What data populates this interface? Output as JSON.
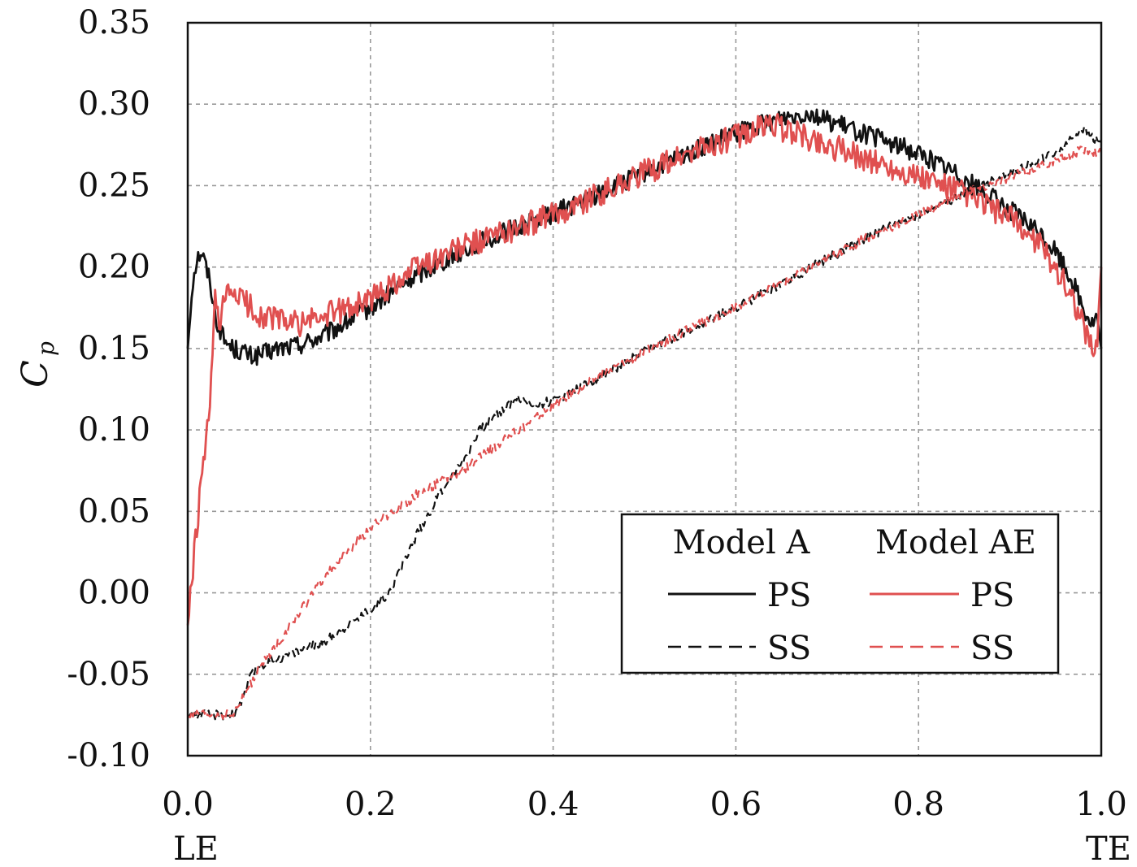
{
  "chart_data": {
    "type": "line",
    "xlabel": "",
    "ylabel": "C",
    "ylabel_subscript": "p",
    "xlim": [
      0.0,
      1.0
    ],
    "ylim": [
      -0.1,
      0.35
    ],
    "grid": true,
    "x_ticks": [
      "0.0",
      "0.2",
      "0.4",
      "0.6",
      "0.8",
      "1.0"
    ],
    "x_tick_values": [
      0.0,
      0.2,
      0.4,
      0.6,
      0.8,
      1.0
    ],
    "x_sublabels": {
      "LE": "LE",
      "TE": "TE"
    },
    "y_ticks": [
      "0.35",
      "0.30",
      "0.25",
      "0.20",
      "0.15",
      "0.10",
      "0.05",
      "0.00",
      "-0.05",
      "-0.10"
    ],
    "y_tick_values": [
      0.35,
      0.3,
      0.25,
      0.2,
      0.15,
      0.1,
      0.05,
      0.0,
      -0.05,
      -0.1
    ],
    "legend": {
      "position": "lower-right",
      "group_titles": [
        "Model A",
        "Model AE"
      ],
      "entries": [
        {
          "group": "Model A",
          "label": "PS",
          "color": "#111111",
          "style": "solid"
        },
        {
          "group": "Model AE",
          "label": "PS",
          "color": "#e05050",
          "style": "solid"
        },
        {
          "group": "Model A",
          "label": "SS",
          "color": "#111111",
          "style": "dashed"
        },
        {
          "group": "Model AE",
          "label": "SS",
          "color": "#e05050",
          "style": "dashed"
        }
      ]
    },
    "series": [
      {
        "name": "Model A PS",
        "color": "#111111",
        "style": "solid",
        "noise": 0.006,
        "x": [
          0.0,
          0.005,
          0.01,
          0.015,
          0.02,
          0.025,
          0.03,
          0.04,
          0.05,
          0.06,
          0.07,
          0.08,
          0.1,
          0.12,
          0.15,
          0.2,
          0.25,
          0.3,
          0.35,
          0.4,
          0.45,
          0.5,
          0.55,
          0.6,
          0.65,
          0.68,
          0.7,
          0.75,
          0.8,
          0.85,
          0.9,
          0.93,
          0.95,
          0.97,
          0.98,
          0.99,
          0.995,
          1.0
        ],
        "y": [
          0.15,
          0.19,
          0.205,
          0.21,
          0.2,
          0.19,
          0.17,
          0.155,
          0.15,
          0.148,
          0.145,
          0.146,
          0.15,
          0.152,
          0.158,
          0.175,
          0.195,
          0.21,
          0.222,
          0.233,
          0.245,
          0.258,
          0.27,
          0.282,
          0.292,
          0.295,
          0.29,
          0.28,
          0.27,
          0.255,
          0.235,
          0.222,
          0.21,
          0.19,
          0.175,
          0.165,
          0.17,
          0.15
        ]
      },
      {
        "name": "Model AE PS",
        "color": "#e05050",
        "style": "solid",
        "noise": 0.008,
        "x": [
          0.0,
          0.005,
          0.01,
          0.015,
          0.02,
          0.025,
          0.028,
          0.03,
          0.035,
          0.04,
          0.05,
          0.06,
          0.07,
          0.08,
          0.1,
          0.12,
          0.15,
          0.2,
          0.25,
          0.3,
          0.35,
          0.4,
          0.45,
          0.5,
          0.55,
          0.6,
          0.64,
          0.65,
          0.7,
          0.75,
          0.8,
          0.85,
          0.9,
          0.93,
          0.95,
          0.97,
          0.98,
          0.99,
          0.995,
          1.0
        ],
        "y": [
          -0.02,
          0.01,
          0.04,
          0.07,
          0.09,
          0.12,
          0.16,
          0.18,
          0.16,
          0.18,
          0.185,
          0.18,
          0.175,
          0.17,
          0.168,
          0.165,
          0.17,
          0.18,
          0.2,
          0.212,
          0.222,
          0.232,
          0.245,
          0.258,
          0.27,
          0.28,
          0.288,
          0.285,
          0.275,
          0.265,
          0.255,
          0.245,
          0.23,
          0.215,
          0.2,
          0.18,
          0.165,
          0.15,
          0.15,
          0.2
        ]
      },
      {
        "name": "Model A SS",
        "color": "#111111",
        "style": "dashed",
        "noise": 0.003,
        "x": [
          0.0,
          0.02,
          0.05,
          0.06,
          0.07,
          0.08,
          0.1,
          0.15,
          0.2,
          0.22,
          0.25,
          0.28,
          0.3,
          0.32,
          0.35,
          0.36,
          0.38,
          0.4,
          0.45,
          0.5,
          0.55,
          0.6,
          0.65,
          0.7,
          0.75,
          0.8,
          0.85,
          0.9,
          0.95,
          0.98,
          0.99,
          1.0
        ],
        "y": [
          -0.075,
          -0.075,
          -0.075,
          -0.065,
          -0.05,
          -0.045,
          -0.04,
          -0.03,
          -0.01,
          0.0,
          0.035,
          0.065,
          0.08,
          0.1,
          0.115,
          0.12,
          0.115,
          0.118,
          0.132,
          0.148,
          0.162,
          0.175,
          0.19,
          0.205,
          0.22,
          0.232,
          0.245,
          0.258,
          0.27,
          0.285,
          0.28,
          0.275
        ]
      },
      {
        "name": "Model AE SS",
        "color": "#e05050",
        "style": "dashed",
        "noise": 0.003,
        "x": [
          0.0,
          0.02,
          0.05,
          0.06,
          0.07,
          0.08,
          0.1,
          0.15,
          0.2,
          0.25,
          0.3,
          0.35,
          0.4,
          0.45,
          0.5,
          0.55,
          0.6,
          0.65,
          0.7,
          0.75,
          0.8,
          0.85,
          0.9,
          0.95,
          0.98,
          1.0
        ],
        "y": [
          -0.075,
          -0.075,
          -0.075,
          -0.065,
          -0.055,
          -0.045,
          -0.03,
          0.01,
          0.04,
          0.06,
          0.075,
          0.095,
          0.115,
          0.133,
          0.148,
          0.162,
          0.175,
          0.19,
          0.205,
          0.22,
          0.232,
          0.245,
          0.255,
          0.265,
          0.272,
          0.27
        ]
      }
    ]
  }
}
